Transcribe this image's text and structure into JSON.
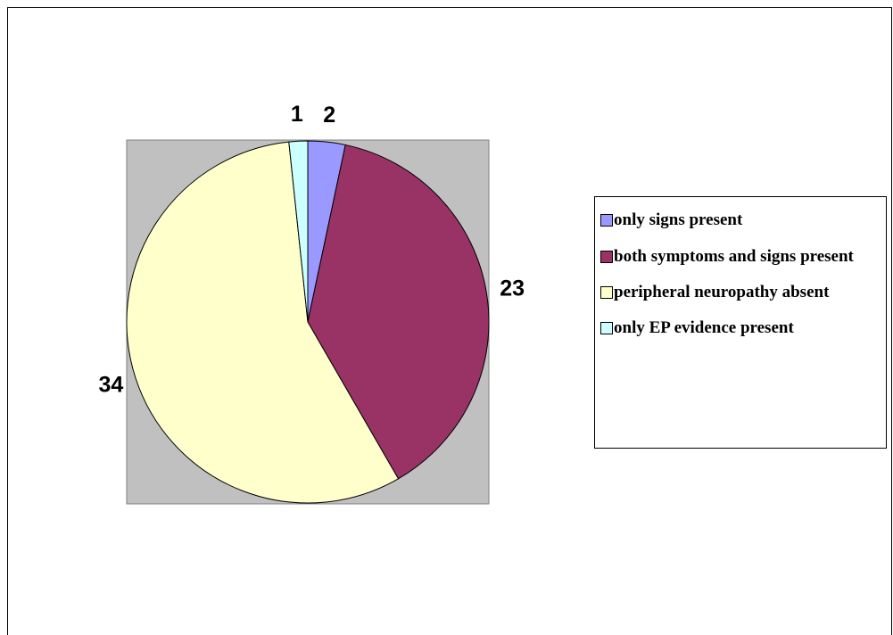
{
  "chart_data": {
    "type": "pie",
    "categories": [
      "only signs present",
      "both symptoms and signs present",
      "peripheral neuropathy absent",
      "only EP evidence present"
    ],
    "values": [
      2,
      23,
      34,
      1
    ],
    "colors": [
      "#9999ff",
      "#993366",
      "#ffffcc",
      "#ccffff"
    ],
    "legend": "right"
  }
}
